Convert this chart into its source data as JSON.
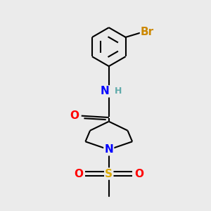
{
  "bg_color": "#ebebeb",
  "atom_colors": {
    "C": "#000000",
    "H": "#5faaaa",
    "N": "#0000ff",
    "O": "#ff0000",
    "S": "#ddaa00",
    "Br": "#cc8800"
  },
  "bond_color": "#000000",
  "bond_lw": 1.5,
  "font_size_heavy": 11,
  "font_size_H": 9,
  "figsize": [
    3.0,
    3.0
  ],
  "dpi": 100,
  "xlim": [
    -1.8,
    2.2
  ],
  "ylim": [
    -3.5,
    2.8
  ]
}
